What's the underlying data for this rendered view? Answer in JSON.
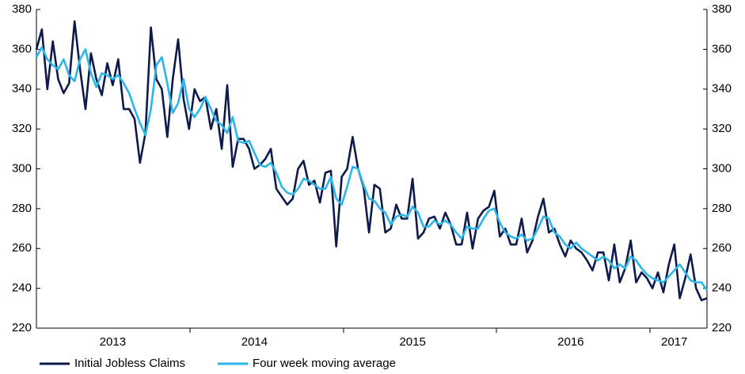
{
  "chart_data": {
    "type": "line",
    "categories": [
      null,
      null,
      null,
      null,
      null,
      null,
      null,
      null,
      null,
      null,
      null,
      null,
      null,
      null,
      "2013",
      null,
      null,
      null,
      null,
      null,
      null,
      null,
      null,
      null,
      null,
      null,
      null,
      null,
      null,
      null,
      null,
      null,
      null,
      null,
      null,
      null,
      null,
      null,
      null,
      null,
      "2014",
      null,
      null,
      null,
      null,
      null,
      null,
      null,
      null,
      null,
      null,
      null,
      null,
      null,
      null,
      null,
      null,
      null,
      null,
      null,
      null,
      null,
      null,
      null,
      null,
      null,
      null,
      null,
      null,
      "2015",
      null,
      null,
      null,
      null,
      null,
      null,
      null,
      null,
      null,
      null,
      null,
      null,
      null,
      null,
      null,
      null,
      null,
      null,
      null,
      null,
      null,
      null,
      null,
      null,
      null,
      null,
      null,
      null,
      "2016",
      null,
      null,
      null,
      null,
      null,
      null,
      null,
      null,
      null,
      null,
      null,
      null,
      null,
      null,
      null,
      null,
      null,
      null,
      "2017",
      null,
      null,
      null,
      null,
      null,
      null
    ],
    "series": [
      {
        "name": "Initial Jobless Claims",
        "color": "#0d1a4b",
        "values": [
          360,
          370,
          340,
          364,
          345,
          338,
          343,
          374,
          350,
          330,
          358,
          345,
          337,
          353,
          342,
          355,
          330,
          330,
          325,
          303,
          318,
          371,
          345,
          340,
          316,
          345,
          365,
          335,
          320,
          340,
          334,
          336,
          320,
          330,
          310,
          342,
          301,
          315,
          315,
          310,
          300,
          302,
          305,
          310,
          290,
          286,
          282,
          285,
          300,
          304,
          292,
          294,
          283,
          298,
          299,
          261,
          296,
          300,
          316,
          300,
          291,
          268,
          292,
          290,
          268,
          270,
          282,
          275,
          275,
          295,
          265,
          268,
          275,
          276,
          270,
          278,
          272,
          262,
          262,
          278,
          260,
          275,
          279,
          281,
          289,
          266,
          270,
          262,
          262,
          275,
          258,
          264,
          276,
          285,
          268,
          270,
          262,
          256,
          264,
          260,
          258,
          254,
          249,
          258,
          258,
          244,
          262,
          243,
          250,
          264,
          243,
          248,
          245,
          240,
          248,
          238,
          252,
          262,
          235,
          245,
          257,
          240,
          234,
          235
        ]
      },
      {
        "name": "Four week moving average",
        "color": "#2bb6ea",
        "values": [
          356,
          361,
          355,
          352,
          350,
          355,
          347,
          344,
          355,
          360,
          348,
          341,
          348,
          347,
          345,
          347,
          343,
          338,
          330,
          323,
          317,
          330,
          352,
          356,
          343,
          328,
          333,
          345,
          330,
          326,
          330,
          336,
          330,
          324,
          322,
          318,
          326,
          314,
          313,
          314,
          308,
          302,
          301,
          303,
          298,
          291,
          288,
          287,
          290,
          295,
          294,
          292,
          290,
          290,
          296,
          285,
          282,
          291,
          301,
          300,
          292,
          285,
          284,
          280,
          278,
          272,
          276,
          277,
          276,
          281,
          278,
          271,
          271,
          274,
          272,
          274,
          272,
          268,
          265,
          271,
          270,
          270,
          275,
          279,
          280,
          273,
          268,
          266,
          265,
          267,
          264,
          265,
          270,
          276,
          275,
          268,
          266,
          262,
          260,
          263,
          260,
          258,
          256,
          254,
          256,
          254,
          250,
          252,
          250,
          256,
          254,
          250,
          247,
          245,
          244,
          243,
          246,
          249,
          252,
          248,
          244,
          243,
          243,
          239
        ]
      }
    ],
    "ylim": [
      220,
      380
    ],
    "yticks": [
      220,
      240,
      260,
      280,
      300,
      320,
      340,
      360,
      380
    ]
  }
}
